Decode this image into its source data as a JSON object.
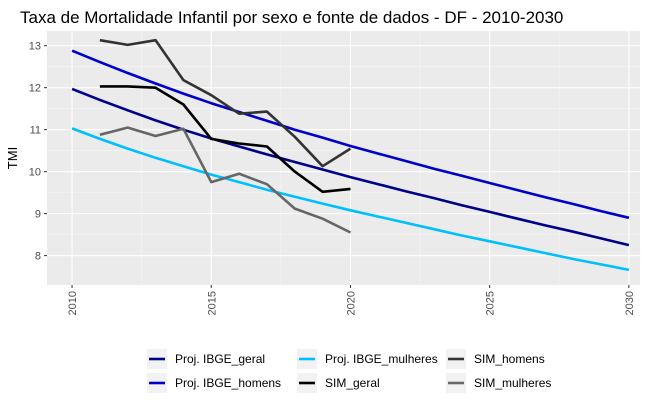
{
  "chart_data": {
    "type": "line",
    "title": "Taxa de Mortalidade Infantil por sexo e fonte de dados - DF - 2010-2030",
    "xlabel": "",
    "ylabel": "TMI",
    "xlim": [
      2009.1,
      2030.4
    ],
    "ylim": [
      7.3,
      13.35
    ],
    "x_ticks": [
      2010,
      2015,
      2020,
      2025,
      2030
    ],
    "y_ticks": [
      8,
      9,
      10,
      11,
      12,
      13
    ],
    "grid": true,
    "legend_position": "bottom",
    "series": [
      {
        "name": "Proj. IBGE_geral",
        "color": "#00008b",
        "points": [
          [
            2010,
            11.97
          ],
          [
            2011,
            11.71
          ],
          [
            2012,
            11.46
          ],
          [
            2013,
            11.22
          ],
          [
            2014,
            11.0
          ],
          [
            2015,
            10.79
          ],
          [
            2016,
            10.6
          ],
          [
            2017,
            10.41
          ],
          [
            2018,
            10.23
          ],
          [
            2019,
            10.05
          ],
          [
            2020,
            9.87
          ],
          [
            2021,
            9.7
          ],
          [
            2022,
            9.53
          ],
          [
            2023,
            9.37
          ],
          [
            2024,
            9.2
          ],
          [
            2025,
            9.04
          ],
          [
            2026,
            8.88
          ],
          [
            2027,
            8.72
          ],
          [
            2028,
            8.57
          ],
          [
            2029,
            8.41
          ],
          [
            2030,
            8.25
          ]
        ]
      },
      {
        "name": "Proj. IBGE_homens",
        "color": "#0000cd",
        "points": [
          [
            2010,
            12.88
          ],
          [
            2011,
            12.61
          ],
          [
            2012,
            12.35
          ],
          [
            2013,
            12.1
          ],
          [
            2014,
            11.86
          ],
          [
            2015,
            11.63
          ],
          [
            2016,
            11.42
          ],
          [
            2017,
            11.21
          ],
          [
            2018,
            11.0
          ],
          [
            2019,
            10.81
          ],
          [
            2020,
            10.61
          ],
          [
            2021,
            10.43
          ],
          [
            2022,
            10.25
          ],
          [
            2023,
            10.07
          ],
          [
            2024,
            9.9
          ],
          [
            2025,
            9.73
          ],
          [
            2026,
            9.56
          ],
          [
            2027,
            9.39
          ],
          [
            2028,
            9.23
          ],
          [
            2029,
            9.06
          ],
          [
            2030,
            8.9
          ]
        ]
      },
      {
        "name": "Proj. IBGE_mulheres",
        "color": "#00bfff",
        "points": [
          [
            2010,
            11.03
          ],
          [
            2011,
            10.78
          ],
          [
            2012,
            10.55
          ],
          [
            2013,
            10.33
          ],
          [
            2014,
            10.13
          ],
          [
            2015,
            9.93
          ],
          [
            2016,
            9.75
          ],
          [
            2017,
            9.57
          ],
          [
            2018,
            9.4
          ],
          [
            2019,
            9.24
          ],
          [
            2020,
            9.08
          ],
          [
            2021,
            8.93
          ],
          [
            2022,
            8.78
          ],
          [
            2023,
            8.63
          ],
          [
            2024,
            8.48
          ],
          [
            2025,
            8.34
          ],
          [
            2026,
            8.2
          ],
          [
            2027,
            8.06
          ],
          [
            2028,
            7.92
          ],
          [
            2029,
            7.79
          ],
          [
            2030,
            7.66
          ]
        ]
      },
      {
        "name": "SIM_geral",
        "color": "#000000",
        "points": [
          [
            2011,
            12.03
          ],
          [
            2012,
            12.03
          ],
          [
            2013,
            12.0
          ],
          [
            2014,
            11.6
          ],
          [
            2015,
            10.78
          ],
          [
            2016,
            10.67
          ],
          [
            2017,
            10.6
          ],
          [
            2018,
            10.0
          ],
          [
            2019,
            9.52
          ],
          [
            2020,
            9.59
          ]
        ]
      },
      {
        "name": "SIM_homens",
        "color": "#333333",
        "points": [
          [
            2011,
            13.13
          ],
          [
            2012,
            13.02
          ],
          [
            2013,
            13.13
          ],
          [
            2014,
            12.18
          ],
          [
            2015,
            11.82
          ],
          [
            2016,
            11.38
          ],
          [
            2017,
            11.43
          ],
          [
            2018,
            10.83
          ],
          [
            2019,
            10.13
          ],
          [
            2020,
            10.55
          ]
        ]
      },
      {
        "name": "SIM_mulheres",
        "color": "#666666",
        "points": [
          [
            2011,
            10.88
          ],
          [
            2012,
            11.05
          ],
          [
            2013,
            10.85
          ],
          [
            2014,
            11.02
          ],
          [
            2015,
            9.75
          ],
          [
            2016,
            9.95
          ],
          [
            2017,
            9.7
          ],
          [
            2018,
            9.12
          ],
          [
            2019,
            8.88
          ],
          [
            2020,
            8.55
          ]
        ]
      }
    ]
  }
}
